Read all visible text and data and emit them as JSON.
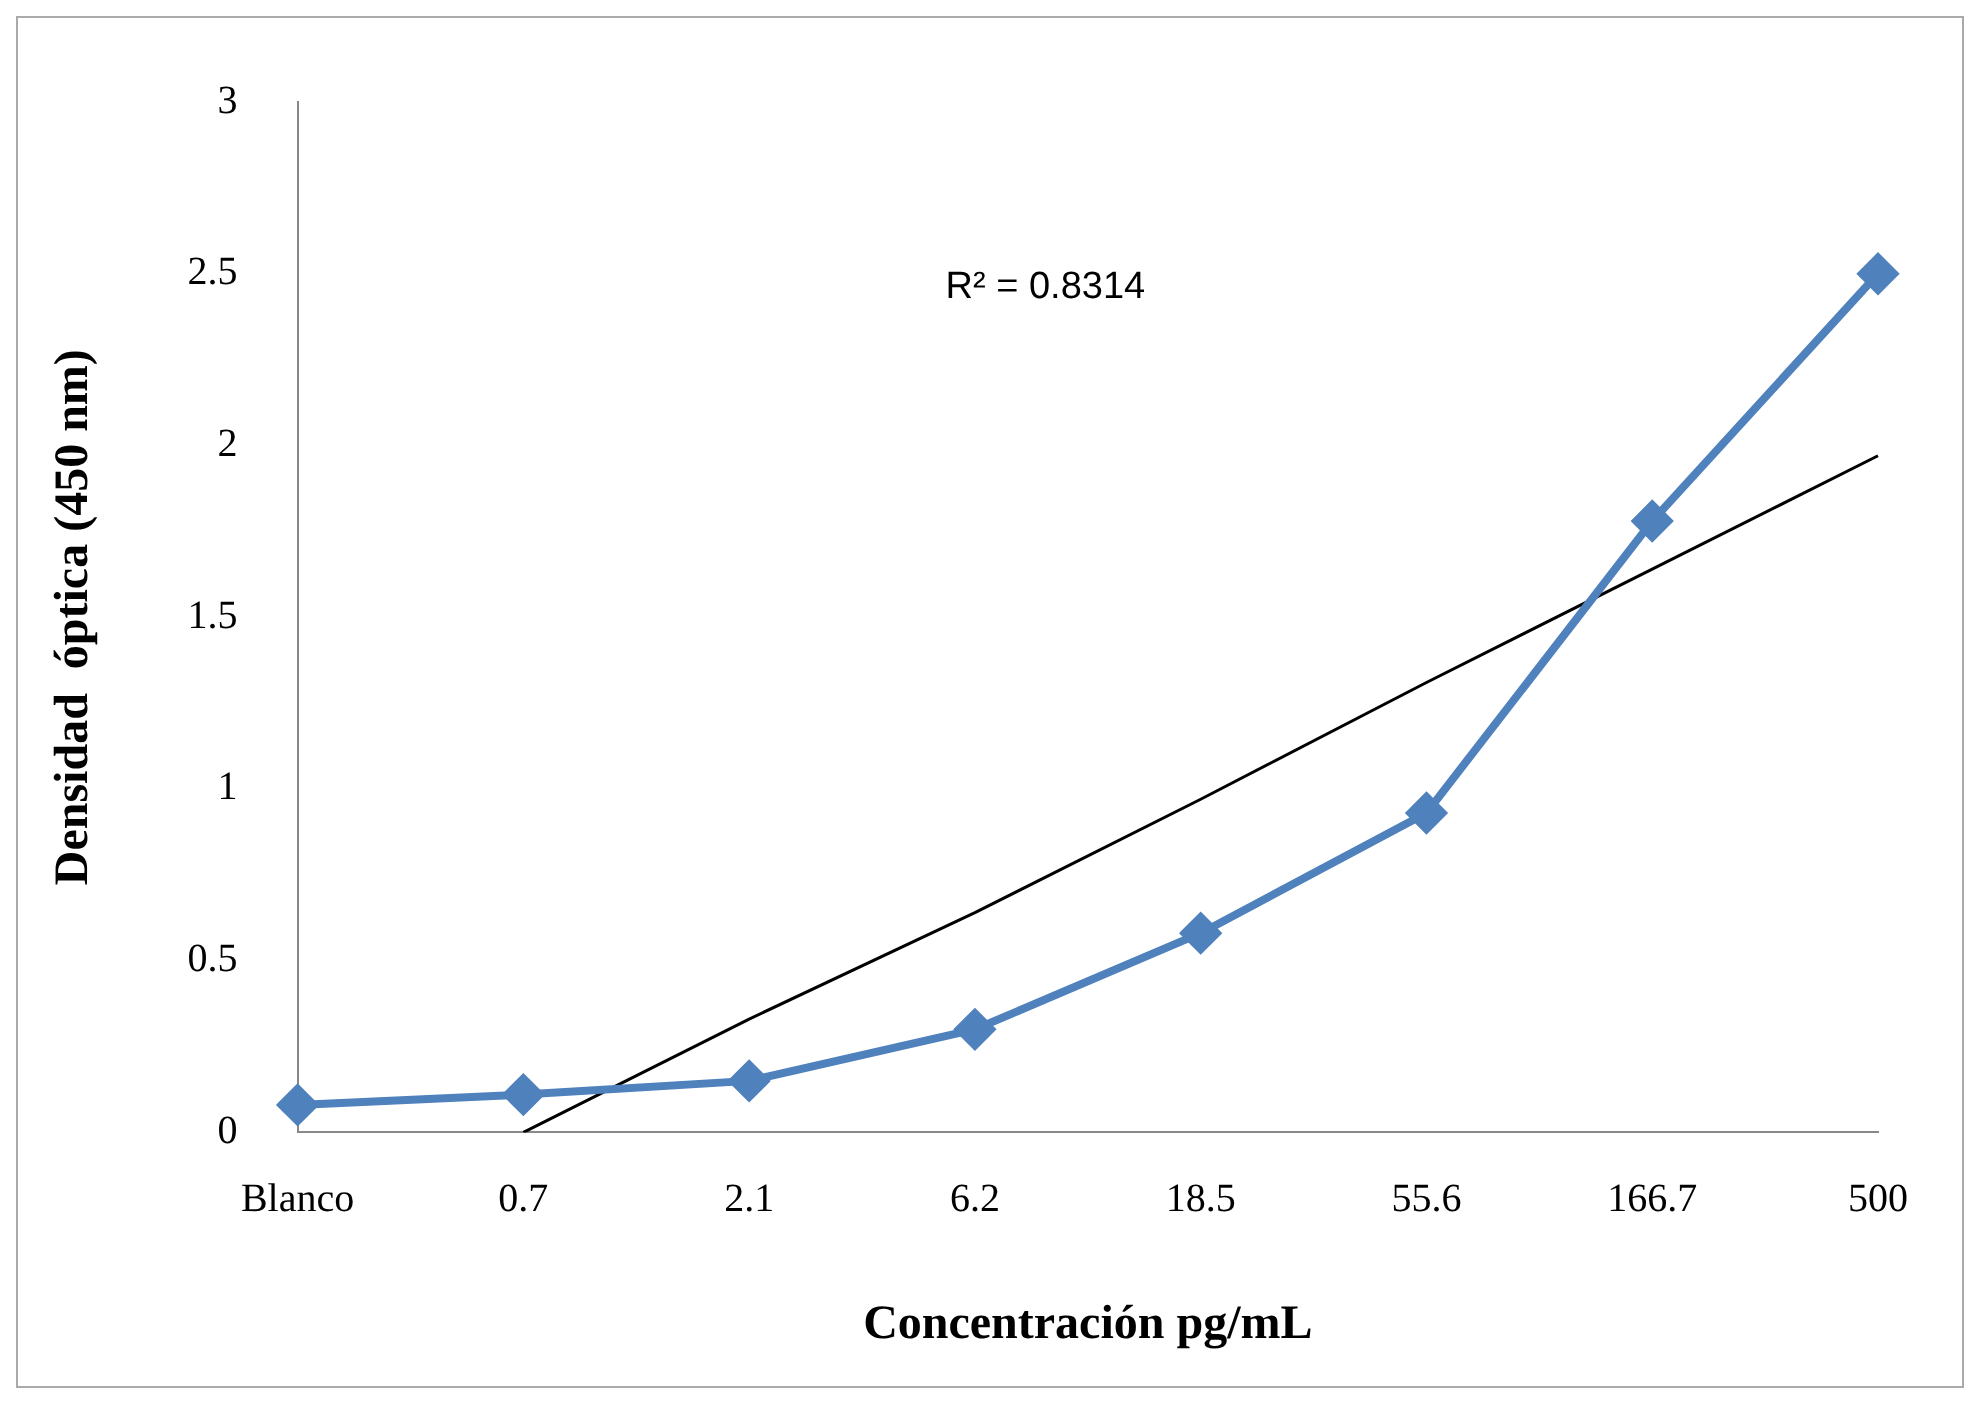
{
  "chart_data": {
    "type": "line",
    "xlabel": "Concentración pg/mL",
    "ylabel": "Densidad  óptica (450 nm)",
    "categories": [
      "Blanco",
      "0.7",
      "2.1",
      "6.2",
      "18.5",
      "55.6",
      "166.7",
      "500"
    ],
    "series": [
      {
        "color": "#4f81bd",
        "values": [
          0.08,
          0.11,
          0.15,
          0.3,
          0.58,
          0.93,
          1.78,
          2.5
        ]
      },
      {
        "type": "line",
        "color": "#000000",
        "marker": "none",
        "values": [
          null,
          0,
          0.33,
          0.64,
          0.97,
          1.31,
          1.64,
          1.97
        ]
      }
    ],
    "ylim": [
      0,
      3
    ],
    "yticks": [
      0,
      0.5,
      1,
      1.5,
      2,
      2.5,
      3
    ],
    "grid": false,
    "legend": false,
    "marker": "diamond",
    "line_style": "solid",
    "annotations": [
      "R² = 0.8314"
    ]
  }
}
